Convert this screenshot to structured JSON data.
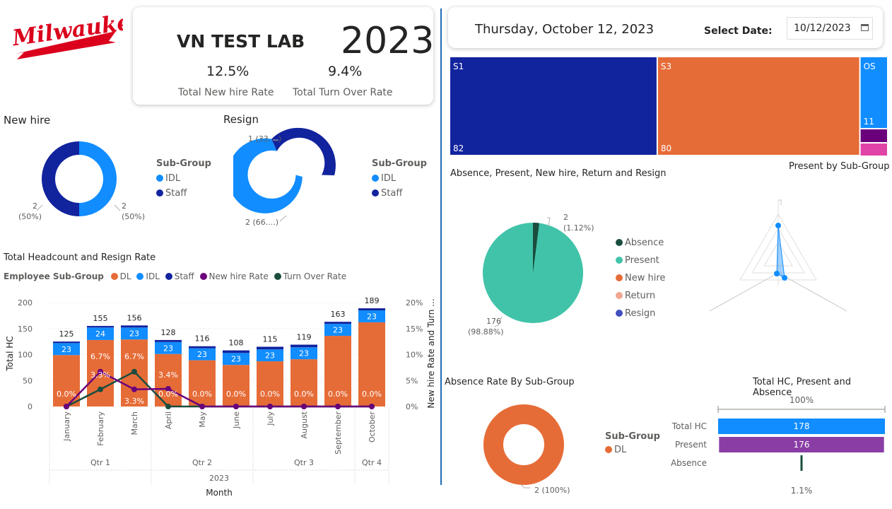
{
  "logo": {
    "text": "Milwaukee",
    "color": "#db011c"
  },
  "kpi_card": {
    "lab_name": "VN TEST LAB",
    "year": "2023",
    "new_hire_rate": "12.5%",
    "new_hire_label": "Total New hire Rate",
    "turnover_rate": "9.4%",
    "turnover_label": "Total Turn Over Rate"
  },
  "date_card": {
    "date_text": "Thursday, October 12, 2023",
    "select_label": "Select Date:",
    "date_value": "10/12/2023",
    "calendar_icon": "calendar-icon"
  },
  "new_hire_donut": {
    "title": "New hire",
    "legend_title": "Sub-Group",
    "legend": [
      "IDL",
      "Staff"
    ],
    "left_label": "2",
    "left_pct": "(50%)",
    "right_label": "2",
    "right_pct": "(50%)"
  },
  "resign_donut": {
    "title": "Resign",
    "legend_title": "Sub-Group",
    "legend": [
      "IDL",
      "Staff"
    ],
    "top_label": "1 (33....)",
    "bottom_label": "2 (66....)"
  },
  "colors": {
    "DL": "#e66c37",
    "IDL": "#118dff",
    "Staff": "#12239e",
    "NewHireRate": "#6b007b",
    "TurnOverRate": "#1a4d3e",
    "teal": "#41c3a9",
    "purple": "#8a3ea5",
    "magenta": "#e044a7",
    "divider": "#1f6cb5"
  },
  "headcount_chart": {
    "title": "Total Headcount and Resign Rate",
    "legend_title": "Employee Sub-Group",
    "legend": [
      "DL",
      "IDL",
      "Staff",
      "New hire Rate",
      "Turn Over Rate"
    ],
    "y_label": "Total HC",
    "y2_label": "New hire Rate and Turn ...",
    "x_label": "Month",
    "y_ticks": [
      "0",
      "50",
      "100",
      "150",
      "200"
    ],
    "y2_ticks": [
      "0%",
      "5%",
      "10%",
      "15%",
      "20%"
    ],
    "quarters": [
      "Qtr 1",
      "Qtr 2",
      "Qtr 3",
      "Qtr 4"
    ],
    "year": "2023"
  },
  "chart_data": [
    {
      "type": "bar",
      "title": "Total Headcount and Resign Rate",
      "xlabel": "Month",
      "ylabel": "Total HC",
      "y2label": "New hire Rate and Turn ...",
      "ylim": [
        0,
        200
      ],
      "y2lim": [
        0,
        20
      ],
      "categories": [
        "January",
        "February",
        "March",
        "April",
        "May",
        "June",
        "July",
        "August",
        "September",
        "October"
      ],
      "totals": [
        125,
        155,
        156,
        128,
        116,
        108,
        115,
        119,
        163,
        189
      ],
      "series": [
        {
          "name": "DL",
          "values": [
            99,
            128,
            129,
            101,
            89,
            80,
            87,
            91,
            136,
            162
          ]
        },
        {
          "name": "IDL",
          "values": [
            23,
            24,
            23,
            23,
            23,
            23,
            23,
            23,
            23,
            23
          ]
        },
        {
          "name": "Staff",
          "values": [
            3,
            3,
            4,
            4,
            4,
            5,
            5,
            5,
            4,
            4
          ]
        },
        {
          "name": "New hire Rate",
          "values": [
            0,
            6.7,
            3.3,
            3.4,
            0,
            0,
            0,
            0,
            0,
            0
          ]
        },
        {
          "name": "Turn Over Rate",
          "values": [
            0,
            3.3,
            6.7,
            0,
            0,
            0,
            0,
            0,
            0,
            0
          ]
        }
      ],
      "idl_labels": [
        "23",
        "24",
        "23",
        "23",
        "23",
        "23",
        "23",
        "23",
        "23",
        "23"
      ],
      "rate_labels": [
        {
          "i": 0,
          "text": "0.0%",
          "pos": "dl"
        },
        {
          "i": 1,
          "text": "6.7%",
          "pos": "upper"
        },
        {
          "i": 1,
          "text": "3.3%",
          "pos": "mid"
        },
        {
          "i": 2,
          "text": "6.7%",
          "pos": "upper"
        },
        {
          "i": 2,
          "text": "3.3%",
          "pos": "low"
        },
        {
          "i": 3,
          "text": "3.4%",
          "pos": "mid"
        },
        {
          "i": 3,
          "text": "0.0%",
          "pos": "dl"
        },
        {
          "i": 4,
          "text": "0.0%",
          "pos": "dl"
        },
        {
          "i": 5,
          "text": "0.0%",
          "pos": "dl"
        },
        {
          "i": 6,
          "text": "0.0%",
          "pos": "dl"
        },
        {
          "i": 7,
          "text": "0.0%",
          "pos": "dl"
        },
        {
          "i": 8,
          "text": "0.0%",
          "pos": "dl"
        },
        {
          "i": 9,
          "text": "0.0%",
          "pos": "dl"
        }
      ]
    },
    {
      "type": "area",
      "title": "Present by Sub-Group",
      "items": [
        {
          "label": "S1",
          "value": 82
        },
        {
          "label": "S3",
          "value": 80
        },
        {
          "label": "OS",
          "value": 11
        }
      ]
    },
    {
      "type": "pie",
      "title": "Absence, Present, New hire, Return and Resign",
      "legend": [
        "Absence",
        "Present",
        "New hire",
        "Return",
        "Resign"
      ],
      "slices": [
        {
          "name": "Absence",
          "value": 2,
          "label": "2",
          "pct": "(1.12%)"
        },
        {
          "name": "Present",
          "value": 176,
          "label": "176",
          "pct": "(98.88%)"
        }
      ]
    },
    {
      "type": "pie",
      "title": "Absence Rate By Sub-Group",
      "legend_title": "Sub-Group",
      "legend": [
        "DL"
      ],
      "slices": [
        {
          "name": "DL",
          "value": 2,
          "label": "2 (100%)"
        }
      ]
    },
    {
      "type": "bar",
      "title": "Total HC, Present and Absence",
      "top_label": "100%",
      "bottom_label": "1.1%",
      "categories": [
        "Total HC",
        "Present",
        "Absence"
      ],
      "values": [
        178,
        176,
        2
      ]
    }
  ]
}
